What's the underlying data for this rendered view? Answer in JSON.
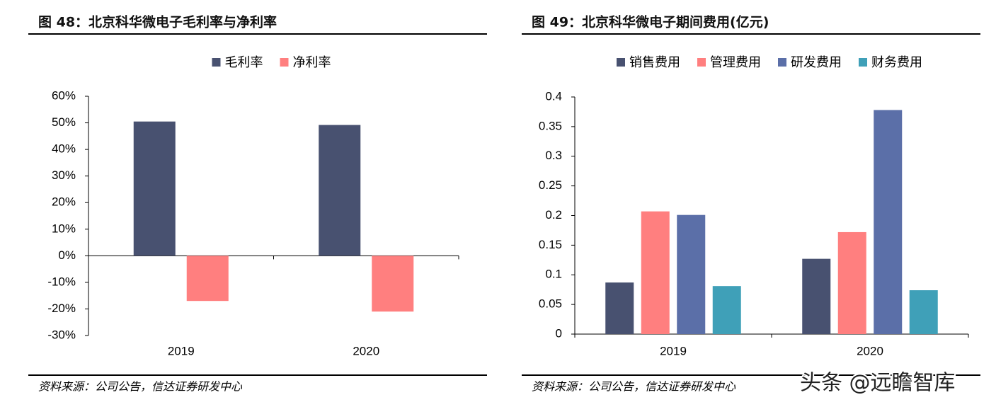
{
  "chart_data": [
    {
      "type": "bar",
      "title": "图 48：北京科华微电子毛利率与净利率",
      "categories": [
        "2019",
        "2020"
      ],
      "series": [
        {
          "name": "毛利率",
          "color": "#485170",
          "values": [
            50.5,
            49.2
          ]
        },
        {
          "name": "净利率",
          "color": "#ff7f7f",
          "values": [
            -17,
            -21
          ]
        }
      ],
      "ylim": [
        -30,
        60
      ],
      "yticks": [
        {
          "value": -30,
          "label": "-30%"
        },
        {
          "value": -20,
          "label": "-20%"
        },
        {
          "value": -10,
          "label": "-10%"
        },
        {
          "value": 0,
          "label": "0%"
        },
        {
          "value": 10,
          "label": "10%"
        },
        {
          "value": 20,
          "label": "20%"
        },
        {
          "value": 30,
          "label": "30%"
        },
        {
          "value": 40,
          "label": "40%"
        },
        {
          "value": 50,
          "label": "50%"
        },
        {
          "value": 60,
          "label": "60%"
        }
      ],
      "grid": false,
      "source": "资料来源：公司公告，信达证券研发中心"
    },
    {
      "type": "bar",
      "title": "图 49：北京科华微电子期间费用(亿元)",
      "categories": [
        "2019",
        "2020"
      ],
      "series": [
        {
          "name": "销售费用",
          "color": "#485170",
          "values": [
            0.087,
            0.127
          ]
        },
        {
          "name": "管理费用",
          "color": "#ff7f7f",
          "values": [
            0.207,
            0.172
          ]
        },
        {
          "name": "研发费用",
          "color": "#5b6fa8",
          "values": [
            0.201,
            0.378
          ]
        },
        {
          "name": "财务费用",
          "color": "#3fa0b8",
          "values": [
            0.081,
            0.074
          ]
        }
      ],
      "ylim": [
        0,
        0.4
      ],
      "yticks": [
        0,
        0.05,
        0.1,
        0.15,
        0.2,
        0.25,
        0.3,
        0.35,
        0.4
      ],
      "grid": false,
      "source": "资料来源：公司公告，信达证券研发中心"
    }
  ],
  "watermark": "头条 @远瞻智库"
}
